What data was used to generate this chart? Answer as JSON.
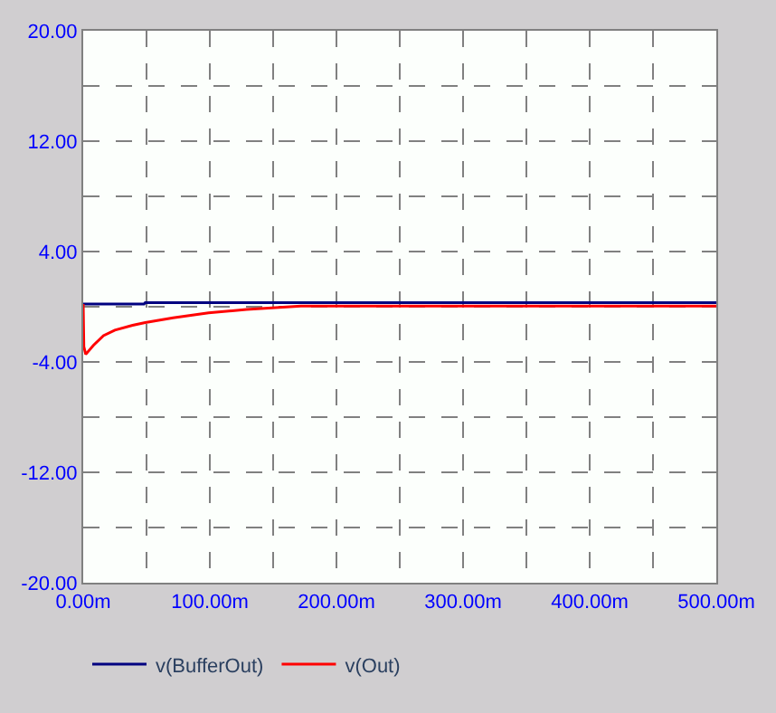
{
  "chart_data": {
    "type": "line",
    "xlim": [
      0,
      500
    ],
    "ylim": [
      -20,
      20
    ],
    "xticks": [
      {
        "value": 0,
        "label": "0.00m"
      },
      {
        "value": 50,
        "label": null
      },
      {
        "value": 100,
        "label": "100.00m"
      },
      {
        "value": 150,
        "label": null
      },
      {
        "value": 200,
        "label": "200.00m"
      },
      {
        "value": 250,
        "label": null
      },
      {
        "value": 300,
        "label": "300.00m"
      },
      {
        "value": 350,
        "label": null
      },
      {
        "value": 400,
        "label": "400.00m"
      },
      {
        "value": 450,
        "label": null
      },
      {
        "value": 500,
        "label": "500.00m"
      }
    ],
    "yticks": [
      {
        "value": -20,
        "label": "-20.00"
      },
      {
        "value": -16,
        "label": null
      },
      {
        "value": -12,
        "label": "-12.00"
      },
      {
        "value": -8,
        "label": null
      },
      {
        "value": -4,
        "label": "-4.00"
      },
      {
        "value": 0,
        "label": null
      },
      {
        "value": 4,
        "label": "4.00"
      },
      {
        "value": 8,
        "label": null
      },
      {
        "value": 12,
        "label": "12.00"
      },
      {
        "value": 16,
        "label": null
      },
      {
        "value": 20,
        "label": "20.00"
      }
    ],
    "grid": true,
    "legend": "bottom",
    "line_style": "solid",
    "marker": "none",
    "series": [
      {
        "name": "v(BufferOut)",
        "color": "#000080",
        "x": [
          0,
          48,
          49,
          500
        ],
        "values": [
          0.2,
          0.2,
          0.3,
          0.3
        ]
      },
      {
        "name": "v(Out)",
        "color": "#ff0000",
        "x": [
          0,
          0.5,
          2,
          8,
          16,
          25,
          39,
          49,
          71,
          99,
          129,
          172,
          500
        ],
        "values": [
          0.2,
          -2.9,
          -3.45,
          -2.8,
          -2.1,
          -1.7,
          -1.35,
          -1.15,
          -0.8,
          -0.45,
          -0.2,
          0.05,
          0.05
        ]
      }
    ]
  }
}
